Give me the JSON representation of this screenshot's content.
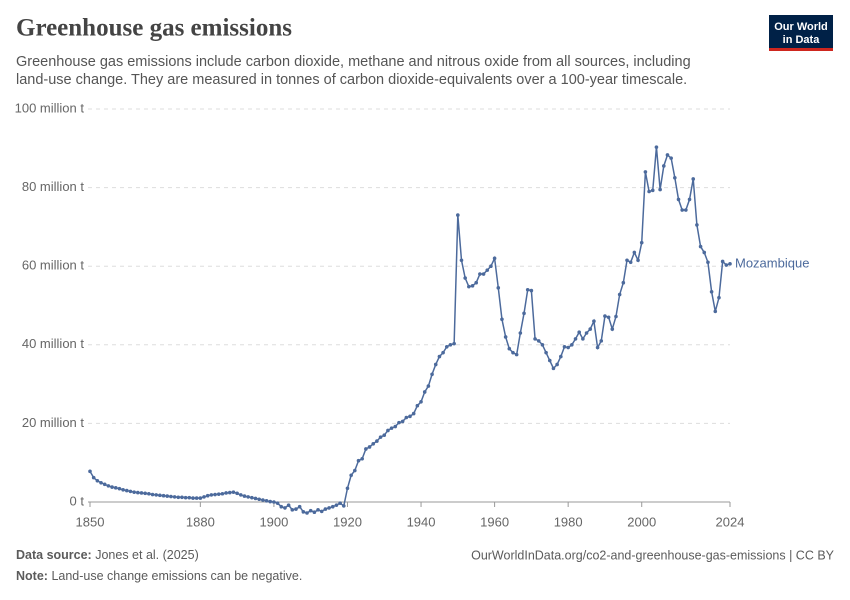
{
  "chart_data": {
    "type": "line",
    "title": "Greenhouse gas emissions",
    "subtitle": [
      "Greenhouse gas emissions include carbon dioxide, methane and nitrous oxide from all sources, including",
      "land-use change. They are measured in tonnes of carbon dioxide-equivalents over a 100-year timescale."
    ],
    "logo": [
      "Our World",
      "in Data"
    ],
    "x": [
      1850,
      1851,
      1852,
      1853,
      1854,
      1855,
      1856,
      1857,
      1858,
      1859,
      1860,
      1861,
      1862,
      1863,
      1864,
      1865,
      1866,
      1867,
      1868,
      1869,
      1870,
      1871,
      1872,
      1873,
      1874,
      1875,
      1876,
      1877,
      1878,
      1879,
      1880,
      1881,
      1882,
      1883,
      1884,
      1885,
      1886,
      1887,
      1888,
      1889,
      1890,
      1891,
      1892,
      1893,
      1894,
      1895,
      1896,
      1897,
      1898,
      1899,
      1900,
      1901,
      1902,
      1903,
      1904,
      1905,
      1906,
      1907,
      1908,
      1909,
      1910,
      1911,
      1912,
      1913,
      1914,
      1915,
      1916,
      1917,
      1918,
      1919,
      1920,
      1921,
      1922,
      1923,
      1924,
      1925,
      1926,
      1927,
      1928,
      1929,
      1930,
      1931,
      1932,
      1933,
      1934,
      1935,
      1936,
      1937,
      1938,
      1939,
      1940,
      1941,
      1942,
      1943,
      1944,
      1945,
      1946,
      1947,
      1948,
      1949,
      1950,
      1951,
      1952,
      1953,
      1954,
      1955,
      1956,
      1957,
      1958,
      1959,
      1960,
      1961,
      1962,
      1963,
      1964,
      1965,
      1966,
      1967,
      1968,
      1969,
      1970,
      1971,
      1972,
      1973,
      1974,
      1975,
      1976,
      1977,
      1978,
      1979,
      1980,
      1981,
      1982,
      1983,
      1984,
      1985,
      1986,
      1987,
      1988,
      1989,
      1990,
      1991,
      1992,
      1993,
      1994,
      1995,
      1996,
      1997,
      1998,
      1999,
      2000,
      2001,
      2002,
      2003,
      2004,
      2005,
      2006,
      2007,
      2008,
      2009,
      2010,
      2011,
      2012,
      2013,
      2014,
      2015,
      2016,
      2017,
      2018,
      2019,
      2020,
      2021,
      2022,
      2023,
      2024
    ],
    "series": [
      {
        "name": "Mozambique",
        "color": "#4c6a9c",
        "values": [
          7.8,
          6.2,
          5.4,
          4.9,
          4.5,
          4.1,
          3.8,
          3.6,
          3.4,
          3.1,
          2.9,
          2.7,
          2.5,
          2.4,
          2.3,
          2.2,
          2.1,
          1.9,
          1.8,
          1.7,
          1.6,
          1.5,
          1.4,
          1.3,
          1.2,
          1.2,
          1.1,
          1.1,
          1.0,
          1.0,
          1.0,
          1.3,
          1.6,
          1.8,
          1.9,
          2.0,
          2.1,
          2.3,
          2.4,
          2.5,
          2.2,
          1.8,
          1.5,
          1.3,
          1.1,
          0.9,
          0.7,
          0.5,
          0.3,
          0.1,
          0,
          -0.3,
          -1.2,
          -1.5,
          -0.8,
          -2.0,
          -1.8,
          -1.2,
          -2.5,
          -2.8,
          -2.2,
          -2.6,
          -2.0,
          -2.4,
          -1.8,
          -1.5,
          -1.2,
          -0.8,
          -0.3,
          -1.0,
          3.5,
          6.8,
          8.0,
          10.5,
          11.0,
          13.5,
          14.0,
          14.8,
          15.5,
          16.5,
          17.0,
          18.2,
          18.8,
          19.2,
          20.2,
          20.5,
          21.5,
          21.8,
          22.5,
          24.5,
          25.5,
          28.0,
          29.5,
          32.5,
          35.0,
          37.0,
          38.0,
          39.5,
          40.0,
          40.3,
          73.0,
          61.5,
          57.0,
          54.8,
          55.0,
          55.8,
          58.0,
          58.0,
          59.0,
          60.0,
          62.0,
          54.5,
          46.5,
          42.0,
          39.0,
          38.0,
          37.5,
          43.0,
          48.0,
          54.0,
          53.8,
          41.5,
          41.0,
          40.0,
          38.0,
          36.0,
          34.0,
          35.0,
          37.0,
          39.5,
          39.3,
          40.0,
          41.5,
          43.2,
          41.5,
          43.0,
          44.0,
          46.0,
          39.3,
          41.0,
          47.3,
          47.0,
          44.0,
          47.2,
          52.8,
          55.8,
          61.5,
          61.0,
          63.5,
          61.5,
          66.0,
          84.0,
          79.0,
          79.3,
          90.3,
          79.5,
          85.5,
          88.3,
          87.5,
          82.5,
          77.0,
          74.3,
          74.3,
          77.0,
          82.2,
          70.5,
          65.0,
          63.5,
          61.0,
          53.5,
          48.5,
          52.0,
          61.2,
          60.3,
          60.6
        ]
      }
    ],
    "xlim": [
      1850,
      2024
    ],
    "xticks": [
      1850,
      1880,
      1900,
      1920,
      1940,
      1960,
      1980,
      2000,
      2024
    ],
    "ylim": [
      0,
      100
    ],
    "yticks": [
      {
        "value": 0,
        "label": "0 t"
      },
      {
        "value": 20,
        "label": "20 million t"
      },
      {
        "value": 40,
        "label": "40 million t"
      },
      {
        "value": 60,
        "label": "60 million t"
      },
      {
        "value": 80,
        "label": "80 million t"
      },
      {
        "value": 100,
        "label": "100 million t"
      }
    ],
    "grid": true,
    "source_label": "Data source:",
    "source": "Jones et al. (2025)",
    "url": "OurWorldInData.org/co2-and-greenhouse-gas-emissions | CC BY",
    "note_label": "Note:",
    "note": "Land-use change emissions can be negative."
  }
}
